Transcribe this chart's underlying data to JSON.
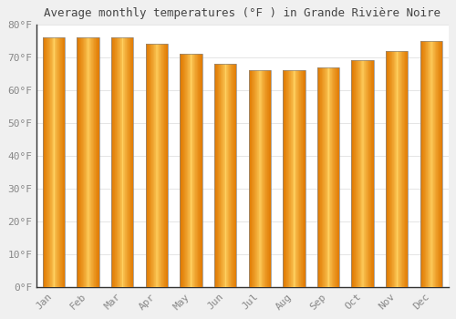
{
  "title": "Average monthly temperatures (°F ) in Grande Rivière Noire",
  "months": [
    "Jan",
    "Feb",
    "Mar",
    "Apr",
    "May",
    "Jun",
    "Jul",
    "Aug",
    "Sep",
    "Oct",
    "Nov",
    "Dec"
  ],
  "values": [
    76,
    76,
    76,
    74,
    71,
    68,
    66,
    66,
    67,
    69,
    72,
    75
  ],
  "ylim": [
    0,
    80
  ],
  "yticks": [
    0,
    10,
    20,
    30,
    40,
    50,
    60,
    70,
    80
  ],
  "bar_color_center": "#FFD060",
  "bar_color_edge": "#E07800",
  "background_color": "#f0f0f0",
  "plot_bg_color": "#ffffff",
  "title_fontsize": 9,
  "tick_fontsize": 8,
  "grid_color": "#e0e0e0",
  "tick_color": "#888888",
  "title_color": "#444444",
  "spine_color": "#333333"
}
